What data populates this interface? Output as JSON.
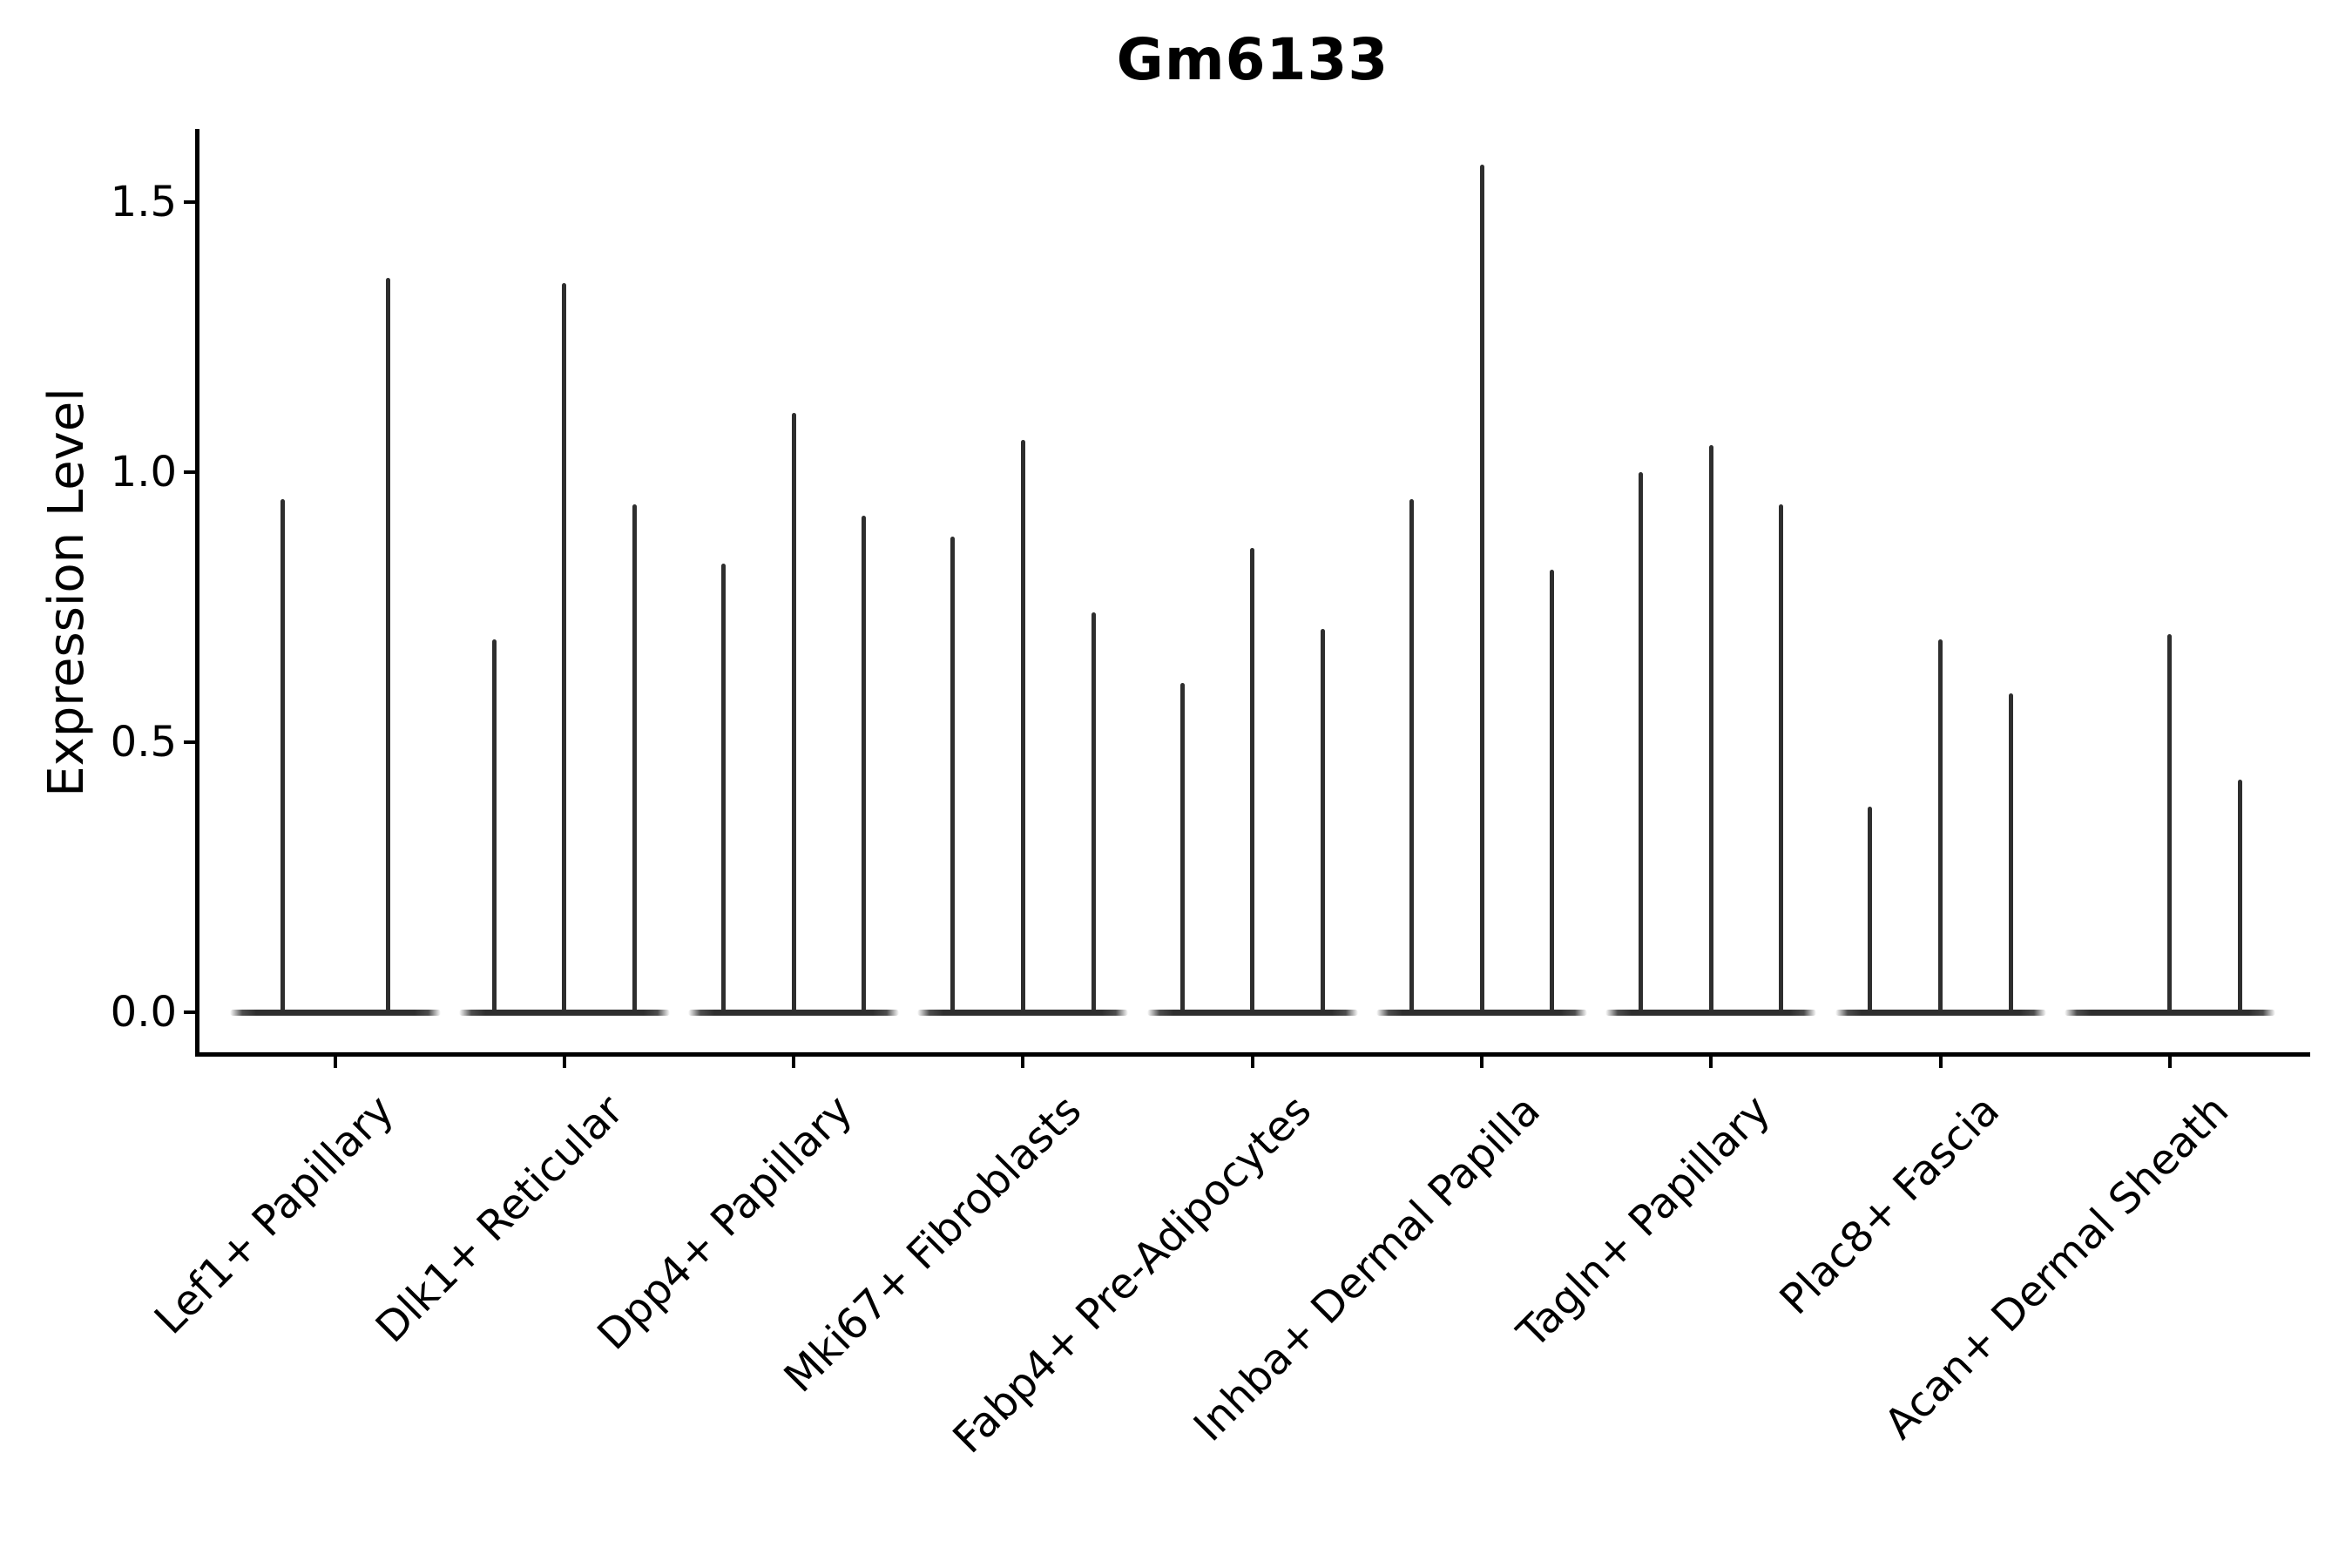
{
  "title": "Gm6133",
  "ylabel": "Expression Level",
  "chart_data": {
    "type": "violin",
    "title": "Gm6133",
    "xlabel": "",
    "ylabel": "Expression Level",
    "ylim": [
      -0.08,
      1.64
    ],
    "yticks": [
      0.0,
      0.5,
      1.0,
      1.5
    ],
    "ytick_labels": [
      "0.0",
      "0.5",
      "1.0",
      "1.5"
    ],
    "grid": false,
    "legend": "none",
    "note": "Each category shows thin violins (distributions concentrated at 0 with narrow tails); values are the upper tail maxima of each violin",
    "categories": [
      "Lef1+ Papillary",
      "Dlk1+ Reticular",
      "Dpp4+ Papillary",
      "Mki67+ Fibroblasts",
      "Fabp4+ Pre-Adipocytes",
      "Inhba+ Dermal Papilla",
      "Tagln+ Papillary",
      "Plac8+ Fascia",
      "Acan+ Dermal Sheath"
    ],
    "groups": [
      {
        "label": "Lef1+ Papillary",
        "violin_maxima": [
          0.95,
          1.36
        ]
      },
      {
        "label": "Dlk1+ Reticular",
        "violin_maxima": [
          0.69,
          1.35,
          0.94
        ]
      },
      {
        "label": "Dpp4+ Papillary",
        "violin_maxima": [
          0.83,
          1.11,
          0.92
        ]
      },
      {
        "label": "Mki67+ Fibroblasts",
        "violin_maxima": [
          0.88,
          1.06,
          0.74
        ]
      },
      {
        "label": "Fabp4+ Pre-Adipocytes",
        "violin_maxima": [
          0.61,
          0.86,
          0.71
        ]
      },
      {
        "label": "Inhba+ Dermal Papilla",
        "violin_maxima": [
          0.95,
          1.57,
          0.82
        ]
      },
      {
        "label": "Tagln+ Papillary",
        "violin_maxima": [
          1.0,
          1.05,
          0.94
        ]
      },
      {
        "label": "Plac8+ Fascia",
        "violin_maxima": [
          0.38,
          0.69,
          0.59
        ]
      },
      {
        "label": "Acan+ Dermal Sheath",
        "violin_maxima": [
          0.0,
          0.7,
          0.43
        ]
      }
    ],
    "violin_color": "#2e2e2e",
    "axis_color": "#000000"
  }
}
